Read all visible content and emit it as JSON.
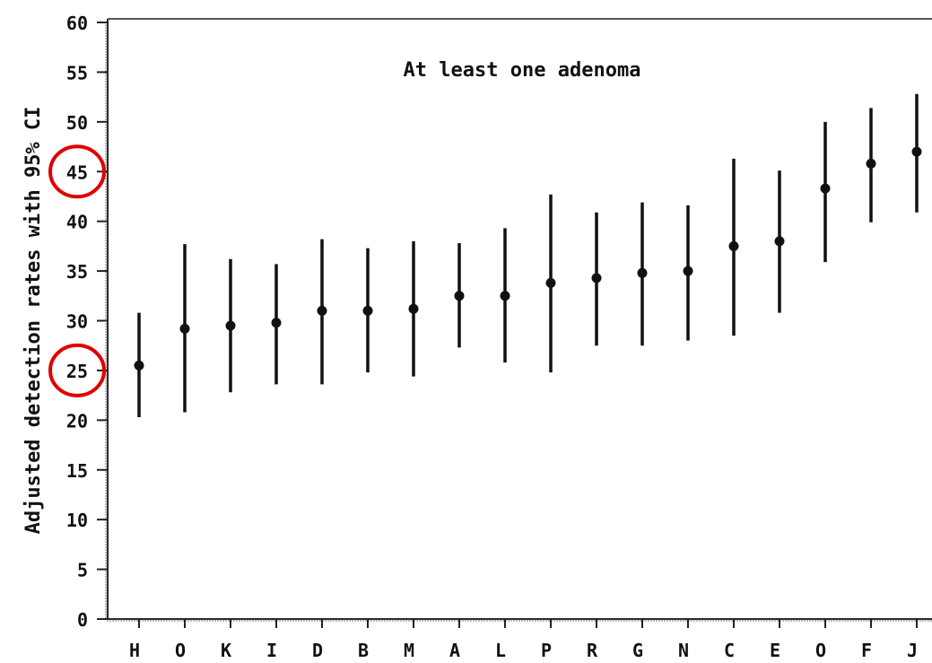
{
  "chart_data": {
    "type": "scatter",
    "title": "At least one adenoma",
    "xlabel": "",
    "ylabel": "Adjusted detection rates with 95% CI",
    "ylim": [
      0,
      60
    ],
    "yticks": [
      0,
      5,
      10,
      15,
      20,
      25,
      30,
      35,
      40,
      45,
      50,
      55,
      60
    ],
    "grid": false,
    "categories": [
      "H",
      "O",
      "K",
      "I",
      "D",
      "B",
      "M",
      "A",
      "L",
      "P",
      "R",
      "G",
      "N",
      "C",
      "E",
      "O",
      "F",
      "J"
    ],
    "values": [
      25.5,
      29.2,
      29.5,
      29.8,
      31.0,
      31.0,
      31.2,
      32.5,
      32.5,
      33.8,
      34.3,
      34.8,
      35.0,
      37.5,
      38.0,
      43.3,
      45.8,
      47.0
    ],
    "ci_low": [
      20.3,
      20.8,
      22.8,
      23.6,
      23.6,
      24.8,
      24.4,
      27.3,
      25.8,
      24.8,
      27.5,
      27.5,
      28.0,
      28.5,
      30.8,
      35.9,
      39.9,
      40.9
    ],
    "ci_high": [
      30.8,
      37.7,
      36.2,
      35.7,
      38.2,
      37.3,
      38.0,
      37.8,
      39.3,
      42.7,
      40.9,
      41.9,
      41.6,
      46.3,
      45.1,
      50.0,
      51.4,
      52.8
    ],
    "highlighted_ticks": [
      25,
      45
    ],
    "highlight_color": "#e00000",
    "mark_color": "#111111"
  }
}
